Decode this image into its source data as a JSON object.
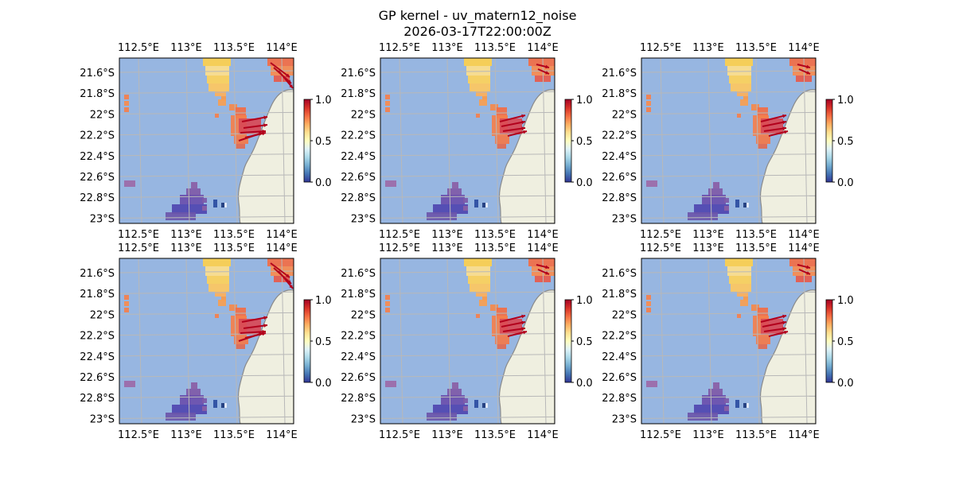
{
  "title": "GP kernel - uv_matern12_noise",
  "subtitle": "2026-03-17T22:00:00Z",
  "colors": {
    "ocean": "#97b6e1",
    "land": "#efefe0",
    "coast": "#8a8a8a",
    "grid": "#b8b8b8",
    "arrow": "#b2001c",
    "colormap": [
      "#313695",
      "#4575b4",
      "#74add1",
      "#abd9e9",
      "#e0f3f8",
      "#ffffbf",
      "#fee090",
      "#fdae61",
      "#f46d43",
      "#d73027",
      "#a50026"
    ]
  },
  "chart_data": [
    {
      "type": "heatmap",
      "panel": "row1-col1",
      "xticks": [
        "112.5°E",
        "113°E",
        "113.5°E",
        "114°E"
      ],
      "yticks": [
        "21.6°S",
        "21.8°S",
        "22°S",
        "22.2°S",
        "22.4°S",
        "22.6°S",
        "22.8°S",
        "23°S"
      ],
      "xlim": [
        112.35,
        114.2
      ],
      "ylim": [
        -23.0,
        -21.45
      ],
      "colorbar": {
        "range": [
          0.0,
          1.0
        ],
        "ticks": [
          "0.0",
          "0.5",
          "1.0"
        ]
      },
      "grid": true,
      "arrows": "north-east cluster and central coastal cluster"
    },
    {
      "type": "heatmap",
      "panel": "row1-col2",
      "xticks": [
        "112.5°E",
        "113°E",
        "113.5°E",
        "114°E"
      ],
      "yticks": [
        "21.6°S",
        "21.8°S",
        "22°S",
        "22.2°S",
        "22.4°S",
        "22.6°S",
        "22.8°S",
        "23°S"
      ],
      "xlim": [
        112.35,
        114.2
      ],
      "ylim": [
        -23.0,
        -21.45
      ],
      "colorbar": {
        "range": [
          0.0,
          1.0
        ],
        "ticks": [
          "0.0",
          "0.5",
          "1.0"
        ]
      },
      "grid": true
    },
    {
      "type": "heatmap",
      "panel": "row1-col3",
      "xticks": [
        "112.5°E",
        "113°E",
        "113.5°E",
        "114°E"
      ],
      "yticks": [
        "21.6°S",
        "21.8°S",
        "22°S",
        "22.2°S",
        "22.4°S",
        "22.6°S",
        "22.8°S",
        "23°S"
      ],
      "xlim": [
        112.35,
        114.2
      ],
      "ylim": [
        -23.0,
        -21.45
      ],
      "colorbar": {
        "range": [
          0.0,
          1.0
        ],
        "ticks": [
          "0.0",
          "0.5",
          "1.0"
        ]
      },
      "grid": true
    },
    {
      "type": "heatmap",
      "panel": "row2-col1",
      "xticks": [
        "112.5°E",
        "113°E",
        "113.5°E",
        "114°E"
      ],
      "yticks": [
        "21.6°S",
        "21.8°S",
        "22°S",
        "22.2°S",
        "22.4°S",
        "22.6°S",
        "22.8°S",
        "23°S"
      ],
      "xlim": [
        112.35,
        114.2
      ],
      "ylim": [
        -23.0,
        -21.45
      ],
      "colorbar": {
        "range": [
          0.0,
          1.0
        ],
        "ticks": [
          "0.0",
          "0.5",
          "1.0"
        ]
      },
      "grid": true
    },
    {
      "type": "heatmap",
      "panel": "row2-col2",
      "xticks": [
        "112.5°E",
        "113°E",
        "113.5°E",
        "114°E"
      ],
      "yticks": [
        "21.6°S",
        "21.8°S",
        "22°S",
        "22.2°S",
        "22.4°S",
        "22.6°S",
        "22.8°S",
        "23°S"
      ],
      "xlim": [
        112.35,
        114.2
      ],
      "ylim": [
        -23.0,
        -21.45
      ],
      "colorbar": {
        "range": [
          0.0,
          1.0
        ],
        "ticks": [
          "0.0",
          "0.5",
          "1.0"
        ]
      },
      "grid": true
    },
    {
      "type": "heatmap",
      "panel": "row2-col3",
      "xticks": [
        "112.5°E",
        "113°E",
        "113.5°E",
        "114°E"
      ],
      "yticks": [
        "21.6°S",
        "21.8°S",
        "22°S",
        "22.2°S",
        "22.4°S",
        "22.6°S",
        "22.8°S",
        "23°S"
      ],
      "xlim": [
        112.35,
        114.2
      ],
      "ylim": [
        -23.0,
        -21.45
      ],
      "colorbar": {
        "range": [
          0.0,
          1.0
        ],
        "ticks": [
          "0.0",
          "0.5",
          "1.0"
        ]
      },
      "grid": true
    }
  ]
}
